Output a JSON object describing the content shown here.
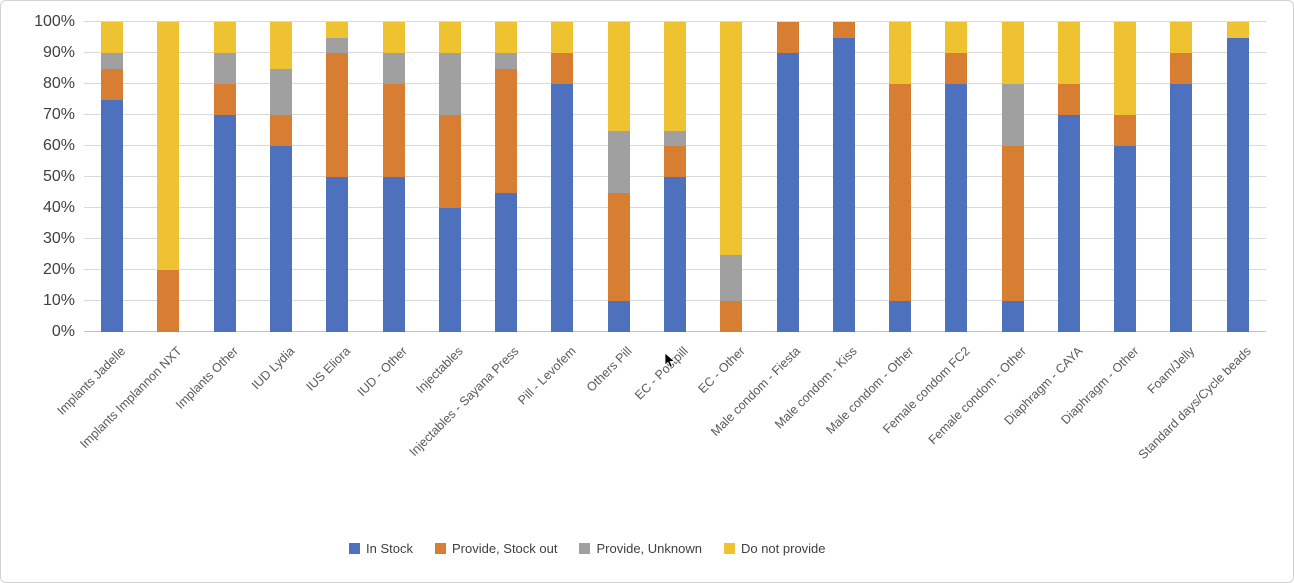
{
  "chart_data": {
    "type": "bar",
    "stacked": true,
    "orientation": "vertical",
    "title": "",
    "xlabel": "",
    "ylabel": "",
    "unit": "%",
    "ylim": [
      0,
      100
    ],
    "ytick_labels": [
      "100%",
      "90%",
      "80%",
      "70%",
      "60%",
      "50%",
      "40%",
      "30%",
      "20%",
      "10%",
      "0%"
    ],
    "grid": true,
    "legend_position": "bottom",
    "categories": [
      "Implants Jadelle",
      "Implants Implannon NXT",
      "Implants Other",
      "IUD Lydia",
      "IUS Eliora",
      "IUD - Other",
      "Injectables",
      "Injectables - Sayana Press",
      "Pill - Levofem",
      "Others Pill",
      "EC - Postpill",
      "EC - Other",
      "Male condom - Fiesta",
      "Male condom - Kiss",
      "Male condom - Other",
      "Female condom FC2",
      "Female condom - Other",
      "Diaphragm - CAYA",
      "Diaphragm - Other",
      "Foam/Jelly",
      "Standard days/Cycle beads"
    ],
    "series": [
      {
        "name": "In Stock",
        "color": "#4E71BE",
        "values": [
          75,
          0,
          70,
          60,
          50,
          50,
          40,
          45,
          80,
          10,
          50,
          0,
          90,
          95,
          10,
          80,
          10,
          70,
          60,
          80,
          95
        ]
      },
      {
        "name": "Provide, Stock out",
        "color": "#D87E32",
        "values": [
          10,
          20,
          10,
          10,
          40,
          30,
          30,
          40,
          10,
          35,
          10,
          10,
          10,
          5,
          70,
          10,
          50,
          10,
          10,
          10,
          0
        ]
      },
      {
        "name": "Provide, Unknown",
        "color": "#A0A0A0",
        "values": [
          5,
          0,
          10,
          15,
          5,
          10,
          20,
          5,
          0,
          20,
          5,
          15,
          0,
          0,
          0,
          0,
          20,
          0,
          0,
          0,
          0
        ]
      },
      {
        "name": "Do not provide",
        "color": "#EFC231",
        "values": [
          10,
          80,
          10,
          15,
          5,
          10,
          10,
          10,
          10,
          35,
          35,
          75,
          0,
          0,
          20,
          10,
          20,
          20,
          30,
          10,
          5
        ]
      }
    ]
  },
  "style": {
    "gridline_color": "#D9D9D9",
    "axis_line_color": "#C3C3C3",
    "ytick_text_color": "#404040",
    "category_text_color": "#595959",
    "legend_text_color": "#3F3F3F",
    "frame_border_color": "#D2D2D2",
    "background_color": "#FFFFFF"
  }
}
